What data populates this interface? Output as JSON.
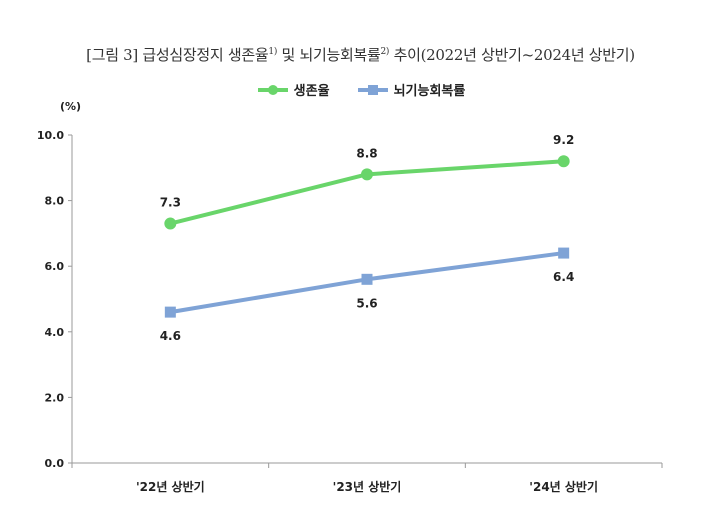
{
  "title": {
    "prefix": "[그림 3] 급성심장정지 생존율",
    "sup1": "1)",
    "middle": " 및 뇌기능회복률",
    "sup2": "2)",
    "suffix": " 추이(2022년 상반기~2024년 상반기)"
  },
  "unit": "(%)",
  "colors": {
    "survival": "#69d56a",
    "recovery": "#7fa3d6",
    "axis": "#9a9a9a"
  },
  "chart_data": {
    "type": "line",
    "categories": [
      "'22년 상반기",
      "'23년 상반기",
      "'24년 상반기"
    ],
    "series": [
      {
        "name": "생존율",
        "values": [
          7.3,
          8.8,
          9.2
        ],
        "marker": "circle",
        "label_position": "above"
      },
      {
        "name": "뇌기능회복률",
        "values": [
          4.6,
          5.6,
          6.4
        ],
        "marker": "square",
        "label_position": "below"
      }
    ],
    "ylim": [
      0,
      10
    ],
    "yticks": [
      "0.0",
      "2.0",
      "4.0",
      "6.0",
      "8.0",
      "10.0"
    ],
    "grid": false,
    "legend": "top-center"
  }
}
